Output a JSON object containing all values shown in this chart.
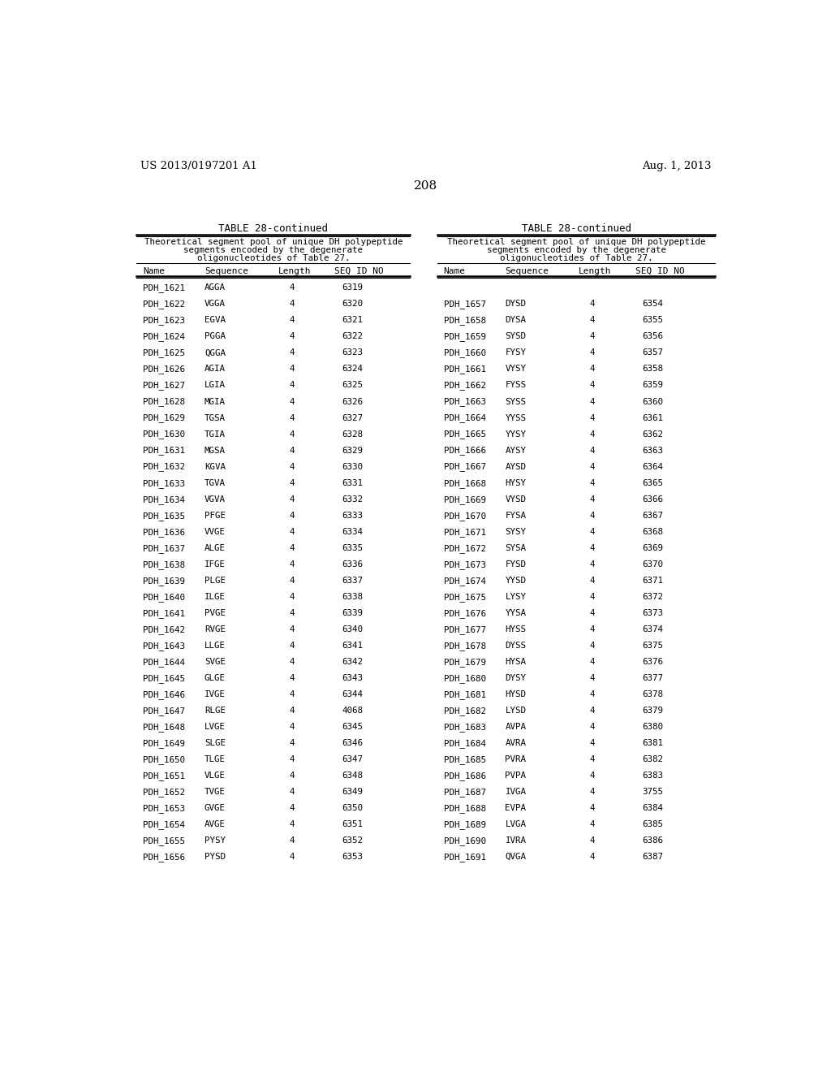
{
  "header_left": "US 2013/0197201 A1",
  "header_right": "Aug. 1, 2013",
  "page_number": "208",
  "table_title": "TABLE 28-continued",
  "table_description_line1": "Theoretical segment pool of unique DH polypeptide",
  "table_description_line2": "segments encoded by the degenerate",
  "table_description_line3": "oligonucleotides of Table 27.",
  "col_headers": [
    "Name",
    "Sequence",
    "Length",
    "SEQ ID NO"
  ],
  "left_data": [
    [
      "PDH_1621",
      "AGGA",
      "4",
      "6319"
    ],
    [
      "PDH_1622",
      "VGGA",
      "4",
      "6320"
    ],
    [
      "PDH_1623",
      "EGVA",
      "4",
      "6321"
    ],
    [
      "PDH_1624",
      "PGGA",
      "4",
      "6322"
    ],
    [
      "PDH_1625",
      "QGGA",
      "4",
      "6323"
    ],
    [
      "PDH_1626",
      "AGIA",
      "4",
      "6324"
    ],
    [
      "PDH_1627",
      "LGIA",
      "4",
      "6325"
    ],
    [
      "PDH_1628",
      "MGIA",
      "4",
      "6326"
    ],
    [
      "PDH_1629",
      "TGSA",
      "4",
      "6327"
    ],
    [
      "PDH_1630",
      "TGIA",
      "4",
      "6328"
    ],
    [
      "PDH_1631",
      "MGSA",
      "4",
      "6329"
    ],
    [
      "PDH_1632",
      "KGVA",
      "4",
      "6330"
    ],
    [
      "PDH_1633",
      "TGVA",
      "4",
      "6331"
    ],
    [
      "PDH_1634",
      "VGVA",
      "4",
      "6332"
    ],
    [
      "PDH_1635",
      "PFGE",
      "4",
      "6333"
    ],
    [
      "PDH_1636",
      "VVGE",
      "4",
      "6334"
    ],
    [
      "PDH_1637",
      "ALGE",
      "4",
      "6335"
    ],
    [
      "PDH_1638",
      "IFGE",
      "4",
      "6336"
    ],
    [
      "PDH_1639",
      "PLGE",
      "4",
      "6337"
    ],
    [
      "PDH_1640",
      "ILGE",
      "4",
      "6338"
    ],
    [
      "PDH_1641",
      "PVGE",
      "4",
      "6339"
    ],
    [
      "PDH_1642",
      "RVGE",
      "4",
      "6340"
    ],
    [
      "PDH_1643",
      "LLGE",
      "4",
      "6341"
    ],
    [
      "PDH_1644",
      "SVGE",
      "4",
      "6342"
    ],
    [
      "PDH_1645",
      "GLGE",
      "4",
      "6343"
    ],
    [
      "PDH_1646",
      "IVGE",
      "4",
      "6344"
    ],
    [
      "PDH_1647",
      "RLGE",
      "4",
      "4068"
    ],
    [
      "PDH_1648",
      "LVGE",
      "4",
      "6345"
    ],
    [
      "PDH_1649",
      "SLGE",
      "4",
      "6346"
    ],
    [
      "PDH_1650",
      "TLGE",
      "4",
      "6347"
    ],
    [
      "PDH_1651",
      "VLGE",
      "4",
      "6348"
    ],
    [
      "PDH_1652",
      "TVGE",
      "4",
      "6349"
    ],
    [
      "PDH_1653",
      "GVGE",
      "4",
      "6350"
    ],
    [
      "PDH_1654",
      "AVGE",
      "4",
      "6351"
    ],
    [
      "PDH_1655",
      "PYSY",
      "4",
      "6352"
    ],
    [
      "PDH_1656",
      "PYSD",
      "4",
      "6353"
    ]
  ],
  "right_data": [
    [
      "PDH_1657",
      "DYSD",
      "4",
      "6354"
    ],
    [
      "PDH_1658",
      "DYSA",
      "4",
      "6355"
    ],
    [
      "PDH_1659",
      "SYSD",
      "4",
      "6356"
    ],
    [
      "PDH_1660",
      "FYSY",
      "4",
      "6357"
    ],
    [
      "PDH_1661",
      "VYSY",
      "4",
      "6358"
    ],
    [
      "PDH_1662",
      "FYSS",
      "4",
      "6359"
    ],
    [
      "PDH_1663",
      "SYSS",
      "4",
      "6360"
    ],
    [
      "PDH_1664",
      "YYSS",
      "4",
      "6361"
    ],
    [
      "PDH_1665",
      "YYSY",
      "4",
      "6362"
    ],
    [
      "PDH_1666",
      "AYSY",
      "4",
      "6363"
    ],
    [
      "PDH_1667",
      "AYSD",
      "4",
      "6364"
    ],
    [
      "PDH_1668",
      "HYSY",
      "4",
      "6365"
    ],
    [
      "PDH_1669",
      "VYSD",
      "4",
      "6366"
    ],
    [
      "PDH_1670",
      "FYSA",
      "4",
      "6367"
    ],
    [
      "PDH_1671",
      "SYSY",
      "4",
      "6368"
    ],
    [
      "PDH_1672",
      "SYSA",
      "4",
      "6369"
    ],
    [
      "PDH_1673",
      "FYSD",
      "4",
      "6370"
    ],
    [
      "PDH_1674",
      "YYSD",
      "4",
      "6371"
    ],
    [
      "PDH_1675",
      "LYSY",
      "4",
      "6372"
    ],
    [
      "PDH_1676",
      "YYSA",
      "4",
      "6373"
    ],
    [
      "PDH_1677",
      "HYSS",
      "4",
      "6374"
    ],
    [
      "PDH_1678",
      "DYSS",
      "4",
      "6375"
    ],
    [
      "PDH_1679",
      "HYSA",
      "4",
      "6376"
    ],
    [
      "PDH_1680",
      "DYSY",
      "4",
      "6377"
    ],
    [
      "PDH_1681",
      "HYSD",
      "4",
      "6378"
    ],
    [
      "PDH_1682",
      "LYSD",
      "4",
      "6379"
    ],
    [
      "PDH_1683",
      "AVPA",
      "4",
      "6380"
    ],
    [
      "PDH_1684",
      "AVRA",
      "4",
      "6381"
    ],
    [
      "PDH_1685",
      "PVRA",
      "4",
      "6382"
    ],
    [
      "PDH_1686",
      "PVPA",
      "4",
      "6383"
    ],
    [
      "PDH_1687",
      "IVGA",
      "4",
      "3755"
    ],
    [
      "PDH_1688",
      "EVPA",
      "4",
      "6384"
    ],
    [
      "PDH_1689",
      "LVGA",
      "4",
      "6385"
    ],
    [
      "PDH_1690",
      "IVRA",
      "4",
      "6386"
    ],
    [
      "PDH_1691",
      "QVGA",
      "4",
      "6387"
    ]
  ],
  "bg_color": "#ffffff",
  "text_color": "#000000"
}
